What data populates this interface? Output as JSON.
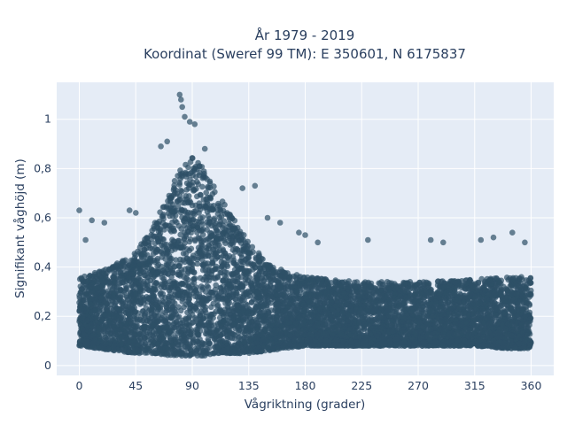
{
  "chart_data": {
    "type": "scatter",
    "title_line1": "År 1979 - 2019",
    "title_line2": "Koordinat (Sweref 99 TM): E 350601, N 6175837",
    "xlabel": "Vågriktning (grader)",
    "ylabel": "Signifikant våghöjd (m)",
    "xlim": [
      -18,
      378
    ],
    "ylim": [
      -0.04,
      1.15
    ],
    "x_ticks": [
      0,
      45,
      90,
      135,
      180,
      225,
      270,
      315,
      360
    ],
    "x_tick_labels": [
      "0",
      "45",
      "90",
      "135",
      "180",
      "225",
      "270",
      "315",
      "360"
    ],
    "y_ticks": [
      0,
      0.2,
      0.4,
      0.6,
      0.8,
      1
    ],
    "y_tick_labels": [
      "0",
      "0,2",
      "0,4",
      "0,6",
      "0,8",
      "1"
    ],
    "grid": true,
    "marker_color": "#2e5066",
    "background_color": "#e5ecf6",
    "envelope": {
      "direction_deg": [
        0,
        15,
        30,
        45,
        60,
        70,
        80,
        90,
        100,
        110,
        120,
        135,
        150,
        165,
        180,
        200,
        225,
        270,
        315,
        340,
        360
      ],
      "typical_min_m": [
        0.08,
        0.07,
        0.06,
        0.05,
        0.05,
        0.04,
        0.04,
        0.04,
        0.04,
        0.05,
        0.05,
        0.05,
        0.06,
        0.07,
        0.08,
        0.08,
        0.08,
        0.08,
        0.08,
        0.07,
        0.07
      ],
      "typical_max_m": [
        0.36,
        0.38,
        0.42,
        0.46,
        0.58,
        0.68,
        0.8,
        0.85,
        0.8,
        0.7,
        0.62,
        0.5,
        0.42,
        0.38,
        0.36,
        0.35,
        0.34,
        0.34,
        0.35,
        0.36,
        0.36
      ]
    },
    "outliers": [
      {
        "x": 0,
        "y": 0.63
      },
      {
        "x": 5,
        "y": 0.51
      },
      {
        "x": 10,
        "y": 0.59
      },
      {
        "x": 20,
        "y": 0.58
      },
      {
        "x": 40,
        "y": 0.63
      },
      {
        "x": 45,
        "y": 0.62
      },
      {
        "x": 65,
        "y": 0.89
      },
      {
        "x": 70,
        "y": 0.91
      },
      {
        "x": 80,
        "y": 1.1
      },
      {
        "x": 81,
        "y": 1.08
      },
      {
        "x": 82,
        "y": 1.05
      },
      {
        "x": 84,
        "y": 1.01
      },
      {
        "x": 88,
        "y": 0.99
      },
      {
        "x": 92,
        "y": 0.98
      },
      {
        "x": 100,
        "y": 0.88
      },
      {
        "x": 130,
        "y": 0.72
      },
      {
        "x": 140,
        "y": 0.73
      },
      {
        "x": 150,
        "y": 0.6
      },
      {
        "x": 160,
        "y": 0.58
      },
      {
        "x": 175,
        "y": 0.54
      },
      {
        "x": 180,
        "y": 0.53
      },
      {
        "x": 190,
        "y": 0.5
      },
      {
        "x": 230,
        "y": 0.51
      },
      {
        "x": 280,
        "y": 0.51
      },
      {
        "x": 290,
        "y": 0.5
      },
      {
        "x": 320,
        "y": 0.51
      },
      {
        "x": 330,
        "y": 0.52
      },
      {
        "x": 345,
        "y": 0.54
      },
      {
        "x": 355,
        "y": 0.5
      }
    ]
  }
}
